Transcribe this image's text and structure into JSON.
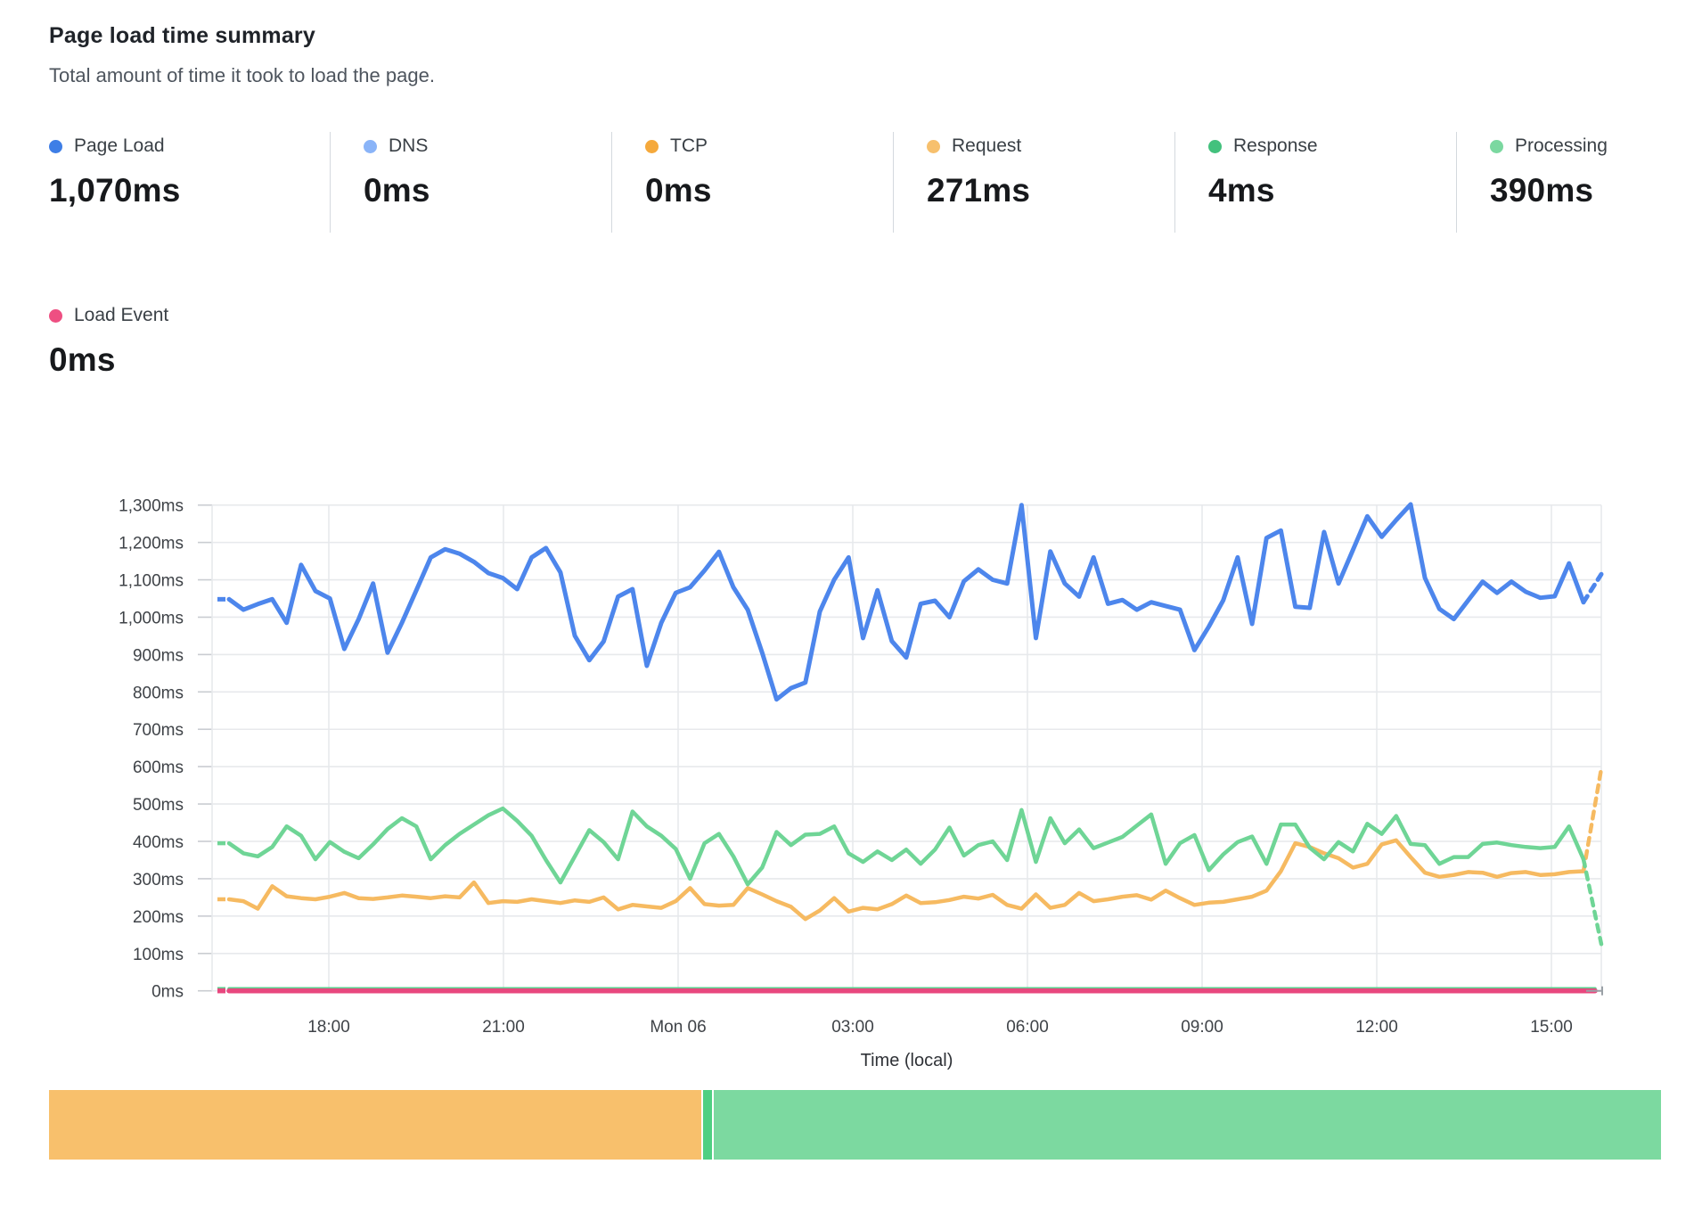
{
  "header": {
    "title": "Page load time summary",
    "subtitle": "Total amount of time it took to load the page."
  },
  "metrics": [
    {
      "label": "Page Load",
      "value": "1,070ms",
      "color": "#3e7ee6"
    },
    {
      "label": "DNS",
      "value": "0ms",
      "color": "#8ab4f8"
    },
    {
      "label": "TCP",
      "value": "0ms",
      "color": "#f5a93c"
    },
    {
      "label": "Request",
      "value": "271ms",
      "color": "#f7c06d"
    },
    {
      "label": "Response",
      "value": "4ms",
      "color": "#43c17d"
    },
    {
      "label": "Processing",
      "value": "390ms",
      "color": "#7bd8a0"
    }
  ],
  "metrics_row2": [
    {
      "label": "Load Event",
      "value": "0ms",
      "color": "#ee4f82"
    }
  ],
  "chart_data": {
    "type": "line",
    "title": "Page load time summary",
    "xlabel": "Time (local)",
    "ylabel": "",
    "y_unit": "ms",
    "ylim": [
      0,
      1300
    ],
    "grid": true,
    "legend_position": "top-summary-cards",
    "y_tick_labels": [
      "0ms",
      "100ms",
      "200ms",
      "300ms",
      "400ms",
      "500ms",
      "600ms",
      "700ms",
      "800ms",
      "900ms",
      "1,000ms",
      "1,100ms",
      "1,200ms",
      "1,300ms"
    ],
    "x_tick_labels": [
      "18:00",
      "21:00",
      "Mon 06",
      "03:00",
      "06:00",
      "09:00",
      "12:00",
      "15:00"
    ],
    "series": [
      {
        "name": "Response",
        "slug": "response",
        "color": "#5ecd8e",
        "width": 3.5,
        "head_dash": true,
        "tail": null,
        "end_tick": false,
        "values": [
          6,
          6
        ]
      },
      {
        "name": "Load Event",
        "slug": "load-event",
        "color": "#e8477e",
        "width": 5.5,
        "head_dash": true,
        "tail": null,
        "end_tick": true,
        "values": [
          0,
          0
        ]
      },
      {
        "name": "Request",
        "slug": "request",
        "color": "#f6ba61",
        "width": 4.5,
        "head_dash": true,
        "tail": 595,
        "end_tick": false,
        "values": [
          245,
          240,
          220,
          280,
          253,
          248,
          245,
          252,
          262,
          248,
          246,
          250,
          255,
          252,
          248,
          253,
          250,
          290,
          235,
          240,
          238,
          245,
          240,
          235,
          242,
          238,
          250,
          218,
          230,
          226,
          222,
          240,
          275,
          232,
          228,
          230,
          275,
          258,
          240,
          225,
          192,
          215,
          248,
          212,
          222,
          218,
          232,
          255,
          235,
          237,
          243,
          252,
          247,
          257,
          230,
          220,
          258,
          222,
          230,
          262,
          240,
          245,
          252,
          256,
          244,
          268,
          248,
          230,
          236,
          238,
          245,
          252,
          268,
          320,
          395,
          385,
          368,
          355,
          330,
          340,
          392,
          403,
          358,
          316,
          305,
          310,
          318,
          316,
          305,
          315,
          318,
          310,
          312,
          318,
          320
        ]
      },
      {
        "name": "Processing",
        "slug": "processing",
        "color": "#6fd596",
        "width": 4.5,
        "head_dash": true,
        "tail": 125,
        "end_tick": false,
        "values": [
          395,
          368,
          360,
          385,
          440,
          415,
          352,
          398,
          372,
          355,
          392,
          433,
          462,
          440,
          352,
          390,
          420,
          445,
          470,
          488,
          455,
          415,
          350,
          290,
          360,
          430,
          398,
          352,
          480,
          440,
          415,
          380,
          300,
          395,
          420,
          360,
          285,
          330,
          425,
          390,
          418,
          420,
          440,
          368,
          345,
          373,
          350,
          378,
          340,
          378,
          437,
          362,
          390,
          400,
          350,
          484,
          345,
          462,
          395,
          432,
          382,
          397,
          412,
          442,
          472,
          340,
          395,
          417,
          323,
          365,
          398,
          413,
          340,
          445,
          445,
          383,
          352,
          398,
          373,
          447,
          420,
          468,
          393,
          390,
          340,
          358,
          358,
          393,
          397,
          390,
          385,
          382,
          385,
          440,
          352
        ]
      },
      {
        "name": "Page Load",
        "slug": "page-load",
        "color": "#4d86ec",
        "width": 5,
        "head_dash": true,
        "tail": 1115,
        "end_tick": false,
        "values": [
          1048,
          1020,
          1035,
          1048,
          985,
          1140,
          1070,
          1050,
          915,
          995,
          1090,
          905,
          985,
          1072,
          1160,
          1182,
          1170,
          1148,
          1118,
          1105,
          1075,
          1160,
          1185,
          1120,
          950,
          885,
          935,
          1055,
          1075,
          870,
          985,
          1065,
          1080,
          1125,
          1175,
          1080,
          1020,
          905,
          780,
          810,
          825,
          1015,
          1100,
          1160,
          944,
          1072,
          936,
          892,
          1036,
          1044,
          1000,
          1096,
          1128,
          1100,
          1090,
          1300,
          944,
          1176,
          1090,
          1055,
          1160,
          1036,
          1046,
          1020,
          1040,
          1030,
          1020,
          912,
          975,
          1045,
          1160,
          982,
          1212,
          1232,
          1028,
          1025,
          1228,
          1090,
          1180,
          1270,
          1215,
          1260,
          1302,
          1105,
          1022,
          995,
          1045,
          1095,
          1065,
          1095,
          1068,
          1052,
          1056,
          1144,
          1040
        ]
      }
    ]
  },
  "bottom_bar": {
    "segments": [
      {
        "color": "#f8c06c",
        "fraction": 0.4045
      },
      {
        "color": "#4fcf82",
        "fraction": 0.0055
      },
      {
        "color": "#7cd9a0",
        "fraction": 0.588
      }
    ]
  },
  "colors": {
    "grid": "#e7e9ec",
    "tick": "#c9ccd1",
    "axis_text": "#3f4348",
    "end_tick": "#9aa0a6"
  }
}
